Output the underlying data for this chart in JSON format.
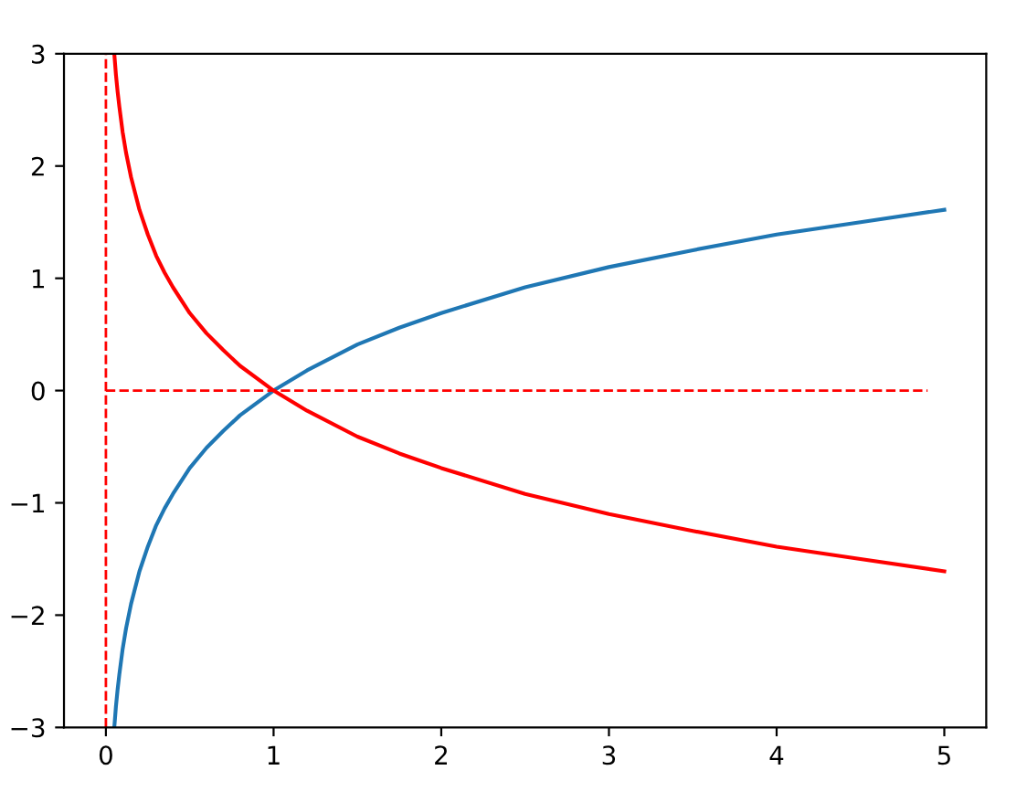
{
  "chart_data": {
    "type": "line",
    "xlim": [
      -0.25,
      5.25
    ],
    "ylim": [
      -3,
      3
    ],
    "xticks": [
      0,
      1,
      2,
      3,
      4,
      5
    ],
    "yticks": [
      -3,
      -2,
      -1,
      0,
      1,
      2,
      3
    ],
    "grid": false,
    "series": [
      {
        "color": "#1f77b4",
        "x": [
          0.05,
          0.06,
          0.07,
          0.08,
          0.1,
          0.12,
          0.15,
          0.2,
          0.25,
          0.3,
          0.35,
          0.4,
          0.5,
          0.6,
          0.7,
          0.8,
          1,
          1.2,
          1.5,
          1.75,
          2,
          2.5,
          3,
          3.5,
          4,
          4.5,
          5
        ],
        "values": [
          -3.0,
          -2.81,
          -2.66,
          -2.53,
          -2.3,
          -2.12,
          -1.9,
          -1.61,
          -1.39,
          -1.2,
          -1.05,
          -0.92,
          -0.69,
          -0.51,
          -0.36,
          -0.22,
          0,
          0.18,
          0.41,
          0.56,
          0.69,
          0.92,
          1.1,
          1.25,
          1.39,
          1.5,
          1.61
        ]
      },
      {
        "color": "#ff0000",
        "x": [
          0.05,
          0.06,
          0.07,
          0.08,
          0.1,
          0.12,
          0.15,
          0.2,
          0.25,
          0.3,
          0.35,
          0.4,
          0.5,
          0.6,
          0.7,
          0.8,
          1,
          1.2,
          1.5,
          1.75,
          2,
          2.5,
          3,
          3.5,
          4,
          4.5,
          5
        ],
        "values": [
          3.0,
          2.81,
          2.66,
          2.53,
          2.3,
          2.12,
          1.9,
          1.61,
          1.39,
          1.2,
          1.05,
          0.92,
          0.69,
          0.51,
          0.36,
          0.22,
          0,
          -0.18,
          -0.41,
          -0.56,
          -0.69,
          -0.92,
          -1.1,
          -1.25,
          -1.39,
          -1.5,
          -1.61
        ]
      },
      {
        "color": "#ff0000",
        "line_style": "dashed",
        "x": [
          0,
          4.9
        ],
        "values": [
          0,
          0
        ]
      },
      {
        "color": "#ff0000",
        "line_style": "dashed",
        "x": [
          0,
          0
        ],
        "values": [
          -3,
          3
        ]
      }
    ]
  }
}
